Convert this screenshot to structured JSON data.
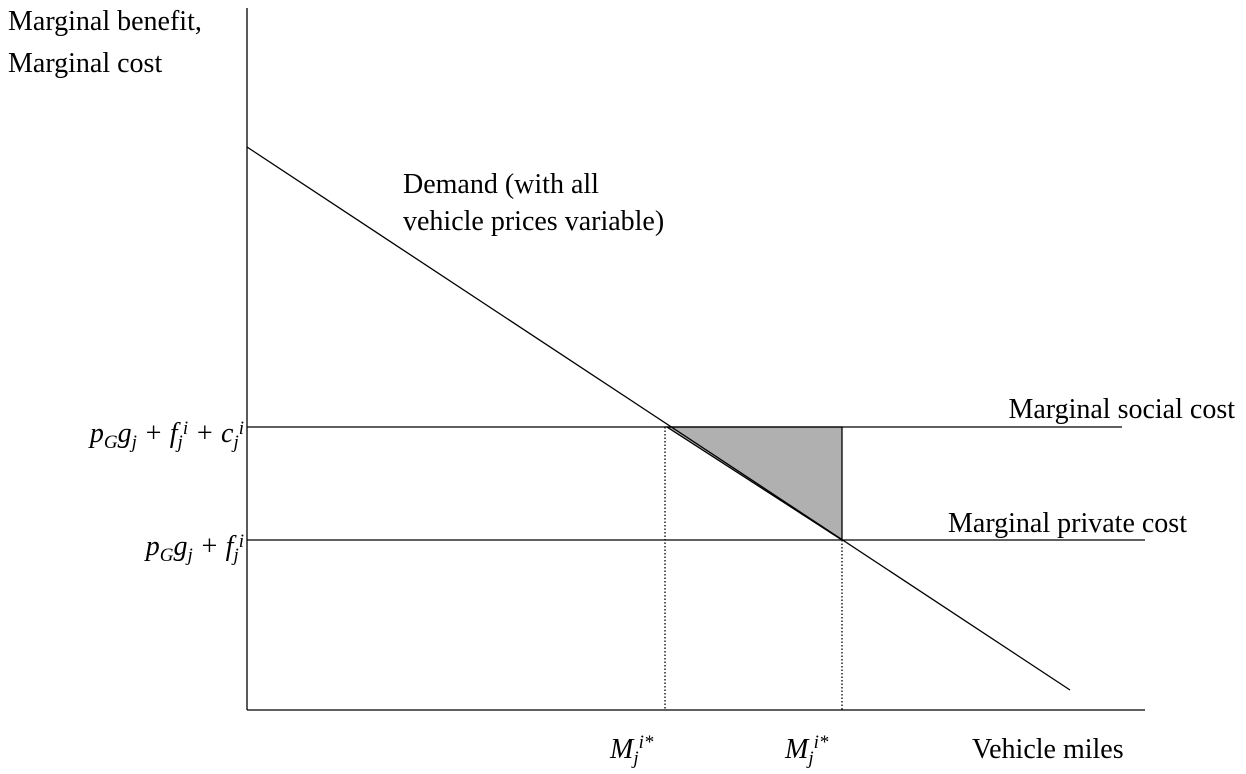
{
  "y_axis_label": [
    "Marginal benefit,",
    "Marginal cost"
  ],
  "x_axis_label": "Vehicle miles",
  "demand_label": [
    "Demand (with all",
    "vehicle prices variable)"
  ],
  "social_cost_label": "Marginal social cost",
  "private_cost_label": "Marginal private cost",
  "social_cost_level": [
    "p",
    "G",
    "g",
    "j",
    " + f",
    "j",
    "i",
    " + c",
    "j",
    "i"
  ],
  "private_cost_level": [
    "p",
    "G",
    "g",
    "j",
    " + f",
    "j",
    "i"
  ],
  "x_marks": [
    [
      "M",
      "j",
      "i*"
    ],
    [
      "M",
      "j",
      "i*"
    ]
  ]
}
